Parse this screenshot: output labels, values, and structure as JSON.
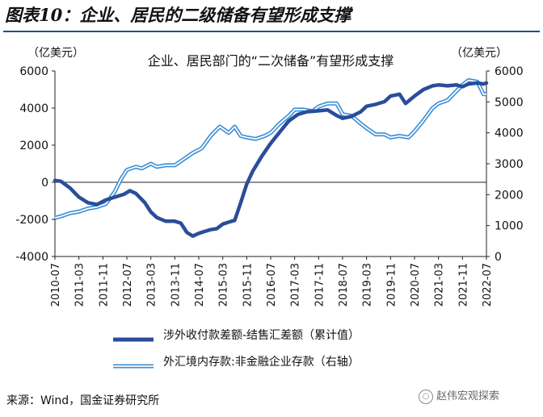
{
  "figure": {
    "title": "图表10：企业、居民的二级储备有望形成支撑",
    "source": "来源：Wind，国金证券研究所",
    "watermark": "赵伟宏观探索",
    "watermark_icon": "wechat-icon"
  },
  "chart_data": {
    "type": "line",
    "title": "企业、居民部门的“二次储备”有望形成支撑",
    "unit_left": "（亿美元）",
    "unit_right": "（亿美元）",
    "ylim_left": [
      -4000,
      6000
    ],
    "yticks_left": [
      6000,
      4000,
      2000,
      0,
      -2000,
      -4000
    ],
    "ylim_right": [
      0,
      6000
    ],
    "yticks_right": [
      6000,
      5000,
      4000,
      3000,
      2000,
      1000,
      0
    ],
    "xlim": [
      "2010-07",
      "2022-07"
    ],
    "xticks": [
      "2010-07",
      "2011-03",
      "2011-11",
      "2012-07",
      "2013-03",
      "2013-11",
      "2014-07",
      "2015-03",
      "2015-11",
      "2016-07",
      "2017-03",
      "2017-11",
      "2018-07",
      "2019-03",
      "2019-11",
      "2020-07",
      "2021-03",
      "2021-11",
      "2022-07"
    ],
    "grid": false,
    "legend_position": "bottom",
    "colors": {
      "series1": "#2a4d9b",
      "series2": "#3a8ed6"
    },
    "series": [
      {
        "name": "涉外收付款差额-结售汇差额（累计值）",
        "axis": "left",
        "style": "thick",
        "points": [
          [
            "2010-07",
            100
          ],
          [
            "2010-09",
            50
          ],
          [
            "2010-12",
            -300
          ],
          [
            "2011-03",
            -800
          ],
          [
            "2011-06",
            -1100
          ],
          [
            "2011-09",
            -1200
          ],
          [
            "2011-12",
            -950
          ],
          [
            "2012-03",
            -800
          ],
          [
            "2012-06",
            -650
          ],
          [
            "2012-08",
            -450
          ],
          [
            "2012-10",
            -600
          ],
          [
            "2013-01",
            -1100
          ],
          [
            "2013-03",
            -1600
          ],
          [
            "2013-05",
            -1900
          ],
          [
            "2013-08",
            -2100
          ],
          [
            "2013-11",
            -2100
          ],
          [
            "2014-01",
            -2200
          ],
          [
            "2014-03",
            -2700
          ],
          [
            "2014-05",
            -2900
          ],
          [
            "2014-07",
            -2750
          ],
          [
            "2014-09",
            -2650
          ],
          [
            "2014-11",
            -2550
          ],
          [
            "2015-01",
            -2500
          ],
          [
            "2015-03",
            -2250
          ],
          [
            "2015-05",
            -2150
          ],
          [
            "2015-07",
            -2050
          ],
          [
            "2015-09",
            -1100
          ],
          [
            "2015-11",
            -100
          ],
          [
            "2016-01",
            600
          ],
          [
            "2016-04",
            1400
          ],
          [
            "2016-07",
            2100
          ],
          [
            "2016-10",
            2700
          ],
          [
            "2017-01",
            3300
          ],
          [
            "2017-04",
            3650
          ],
          [
            "2017-07",
            3800
          ],
          [
            "2017-11",
            3850
          ],
          [
            "2018-02",
            3900
          ],
          [
            "2018-05",
            3600
          ],
          [
            "2018-07",
            3450
          ],
          [
            "2018-10",
            3550
          ],
          [
            "2019-01",
            3800
          ],
          [
            "2019-03",
            4100
          ],
          [
            "2019-06",
            4200
          ],
          [
            "2019-09",
            4350
          ],
          [
            "2019-11",
            4650
          ],
          [
            "2020-02",
            4750
          ],
          [
            "2020-04",
            4250
          ],
          [
            "2020-07",
            4650
          ],
          [
            "2020-10",
            5000
          ],
          [
            "2021-01",
            5200
          ],
          [
            "2021-03",
            5250
          ],
          [
            "2021-06",
            5200
          ],
          [
            "2021-09",
            5250
          ],
          [
            "2021-11",
            5150
          ],
          [
            "2022-01",
            5300
          ],
          [
            "2022-04",
            5350
          ],
          [
            "2022-06",
            5300
          ],
          [
            "2022-07",
            5350
          ]
        ]
      },
      {
        "name": "外汇境内存款:非金融企业存款（右轴）",
        "axis": "right",
        "style": "double",
        "points": [
          [
            "2010-07",
            1250
          ],
          [
            "2010-09",
            1300
          ],
          [
            "2010-12",
            1400
          ],
          [
            "2011-03",
            1450
          ],
          [
            "2011-06",
            1550
          ],
          [
            "2011-09",
            1600
          ],
          [
            "2011-12",
            1700
          ],
          [
            "2012-03",
            2100
          ],
          [
            "2012-05",
            2500
          ],
          [
            "2012-07",
            2800
          ],
          [
            "2012-10",
            2900
          ],
          [
            "2012-12",
            2850
          ],
          [
            "2013-03",
            3000
          ],
          [
            "2013-05",
            2900
          ],
          [
            "2013-08",
            2950
          ],
          [
            "2013-11",
            2950
          ],
          [
            "2014-02",
            3150
          ],
          [
            "2014-05",
            3350
          ],
          [
            "2014-08",
            3500
          ],
          [
            "2014-11",
            3900
          ],
          [
            "2015-02",
            4200
          ],
          [
            "2015-05",
            4000
          ],
          [
            "2015-07",
            4200
          ],
          [
            "2015-09",
            3900
          ],
          [
            "2015-11",
            3850
          ],
          [
            "2016-02",
            3800
          ],
          [
            "2016-05",
            3900
          ],
          [
            "2016-07",
            4000
          ],
          [
            "2016-10",
            4300
          ],
          [
            "2017-01",
            4550
          ],
          [
            "2017-03",
            4750
          ],
          [
            "2017-06",
            4750
          ],
          [
            "2017-09",
            4700
          ],
          [
            "2017-11",
            4850
          ],
          [
            "2018-02",
            4950
          ],
          [
            "2018-05",
            4950
          ],
          [
            "2018-07",
            4600
          ],
          [
            "2018-10",
            4550
          ],
          [
            "2019-01",
            4300
          ],
          [
            "2019-03",
            4150
          ],
          [
            "2019-06",
            3950
          ],
          [
            "2019-09",
            3950
          ],
          [
            "2019-11",
            3850
          ],
          [
            "2020-02",
            3900
          ],
          [
            "2020-05",
            3850
          ],
          [
            "2020-07",
            4050
          ],
          [
            "2020-10",
            4400
          ],
          [
            "2021-01",
            4800
          ],
          [
            "2021-03",
            4950
          ],
          [
            "2021-06",
            5050
          ],
          [
            "2021-09",
            5350
          ],
          [
            "2021-11",
            5550
          ],
          [
            "2022-01",
            5700
          ],
          [
            "2022-04",
            5650
          ],
          [
            "2022-06",
            5250
          ],
          [
            "2022-07",
            5250
          ]
        ]
      }
    ]
  }
}
